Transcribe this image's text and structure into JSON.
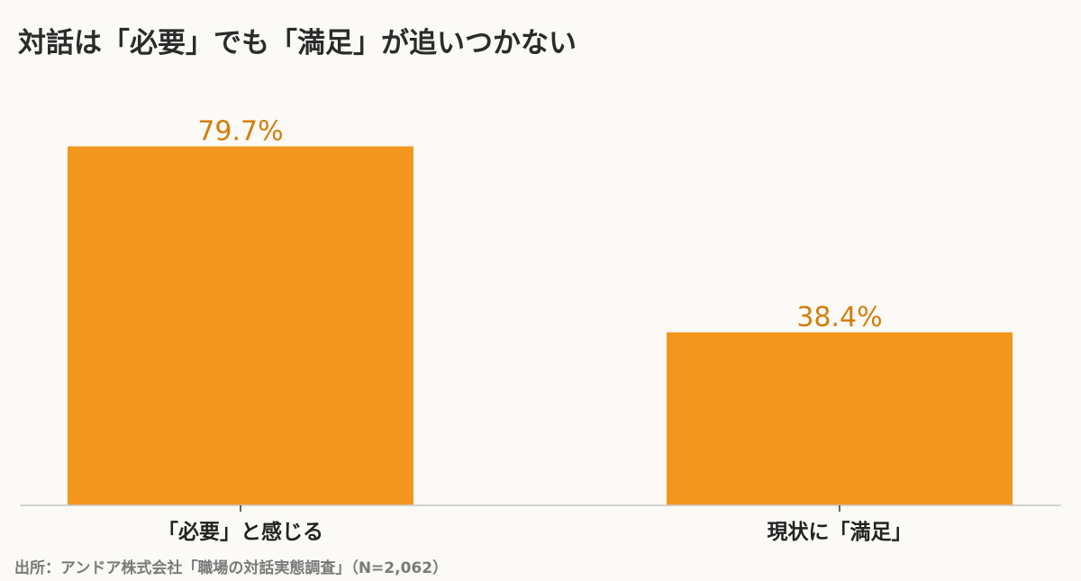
{
  "title": "対話は「必要」でも「満足」が追いつかない",
  "source": "出所：アンドア株式会社「職場の対話実態調査」（N=2,062）",
  "colors": {
    "bar": "#f2961e",
    "value_label": "#d47d0c",
    "axis": "#c8c8c8",
    "category_label": "#222222"
  },
  "chart_data": {
    "type": "bar",
    "title": "対話は「必要」でも「満足」が追いつかない",
    "categories": [
      "「必要」と感じる",
      "現状に「満足」"
    ],
    "values": [
      79.7,
      38.4
    ],
    "value_labels": [
      "79.7%",
      "38.4%"
    ],
    "ylim": [
      0,
      100
    ],
    "grid": false,
    "legend": "none"
  }
}
